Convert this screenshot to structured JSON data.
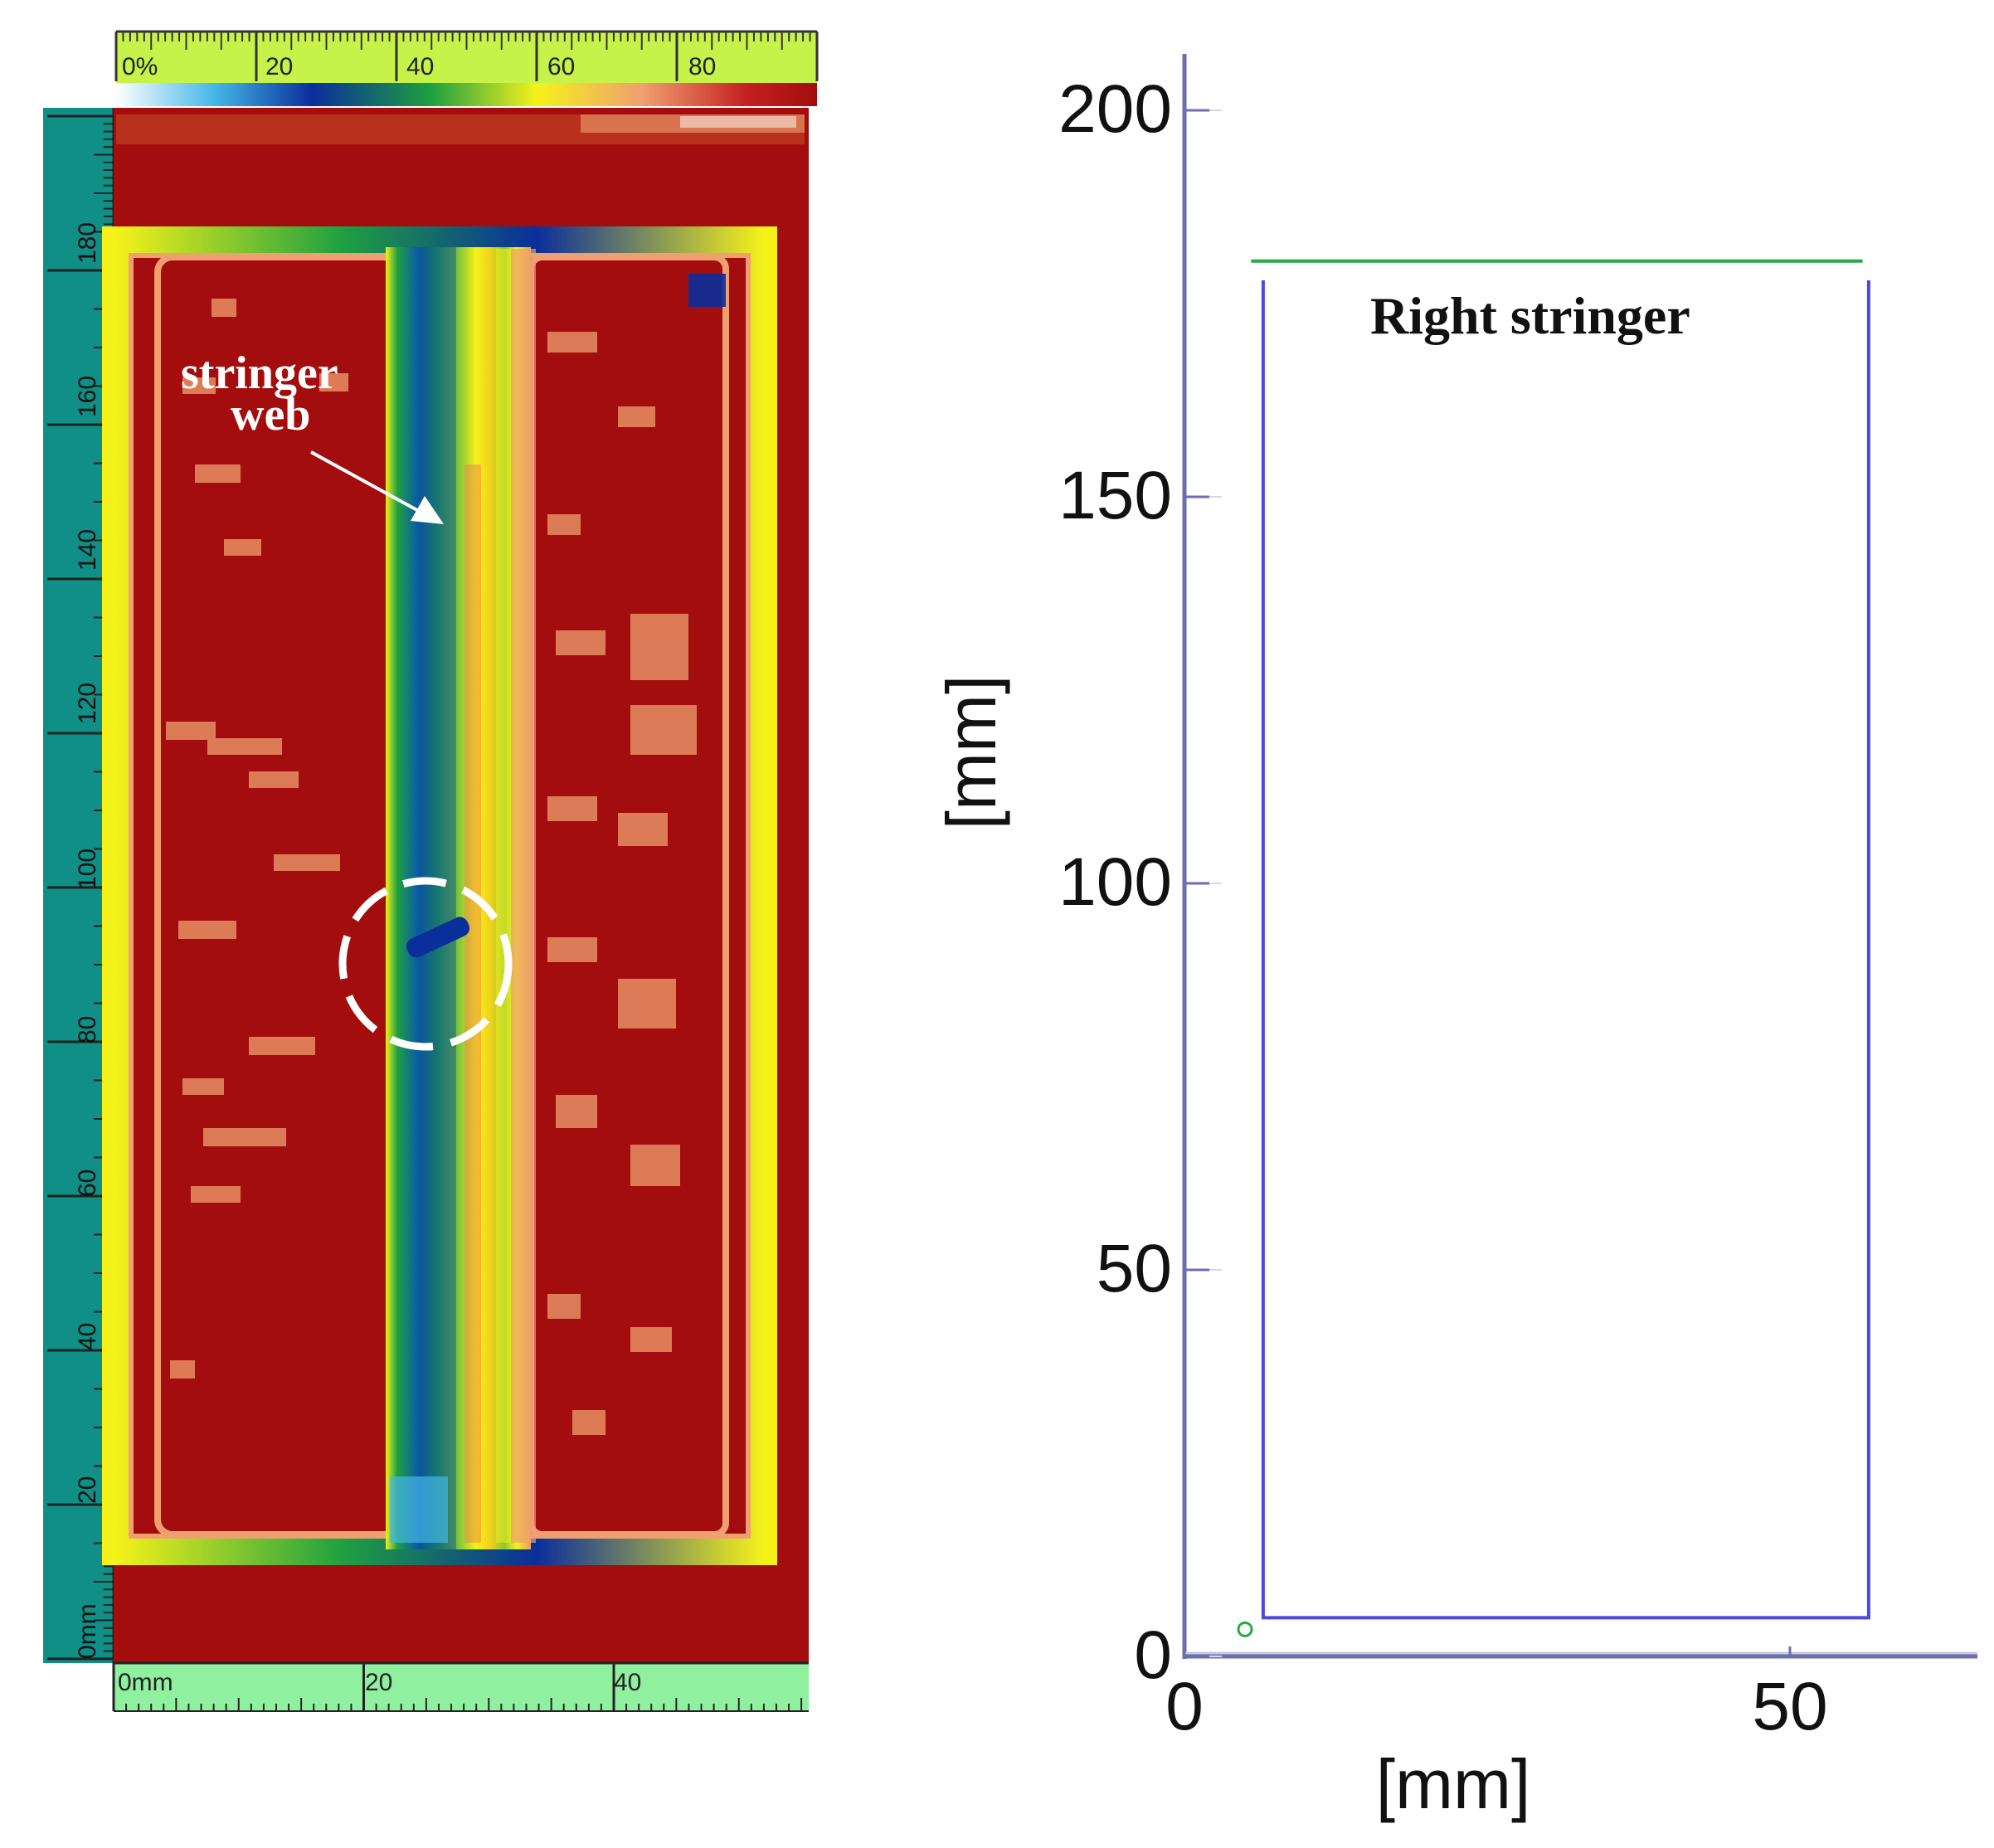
{
  "colors": {
    "map_background": "#a30d0d",
    "colorbar_ruler": "#c6f24a",
    "left_ruler": "#0f8f86",
    "bottom_ruler": "#8ff0a0",
    "outline_blue": "#4a4ae0",
    "outline_green": "#2aa84a",
    "axis": "#6b6fb0"
  },
  "scan_panel": {
    "colorbar": {
      "ticks": [
        {
          "value": 0,
          "label": "0%"
        },
        {
          "value": 20,
          "label": "20"
        },
        {
          "value": 40,
          "label": "40"
        },
        {
          "value": 60,
          "label": "60"
        },
        {
          "value": 80,
          "label": "80"
        }
      ],
      "stops": [
        "#ffffff",
        "#45b7e8",
        "#0a2e9a",
        "#1fa040",
        "#f5f21a",
        "#f0a070",
        "#c42020",
        "#a30d0d"
      ]
    },
    "left_ruler": {
      "labels": [
        "180",
        "160",
        "140",
        "120",
        "100",
        "80",
        "60",
        "40",
        "20",
        "0mm"
      ],
      "values": [
        180,
        160,
        140,
        120,
        100,
        80,
        60,
        40,
        20,
        0
      ]
    },
    "bottom_ruler": {
      "labels": [
        "0mm",
        "20",
        "40"
      ],
      "values": [
        0,
        20,
        40
      ]
    },
    "annotation": {
      "line1": "stringer",
      "line2": "web"
    }
  },
  "chart_data": {
    "type": "line",
    "title": "Right stringer",
    "xlabel": "[mm]",
    "ylabel": "[mm]",
    "xlim": [
      0,
      65
    ],
    "ylim": [
      0,
      205
    ],
    "x_ticks": [
      0,
      50
    ],
    "y_ticks": [
      0,
      50,
      100,
      150,
      200
    ],
    "grid": false,
    "series": [
      {
        "color": "#4a4ae0",
        "x": [
          6.5,
          6.5,
          56.5,
          56.5
        ],
        "y": [
          178,
          5,
          5,
          178
        ]
      },
      {
        "color": "#2aa84a",
        "x": [
          5.5,
          56
        ],
        "y": [
          180.5,
          180.5
        ]
      }
    ],
    "markers": [
      {
        "x": 5,
        "y": 3.5,
        "color": "#2aa84a"
      }
    ]
  }
}
